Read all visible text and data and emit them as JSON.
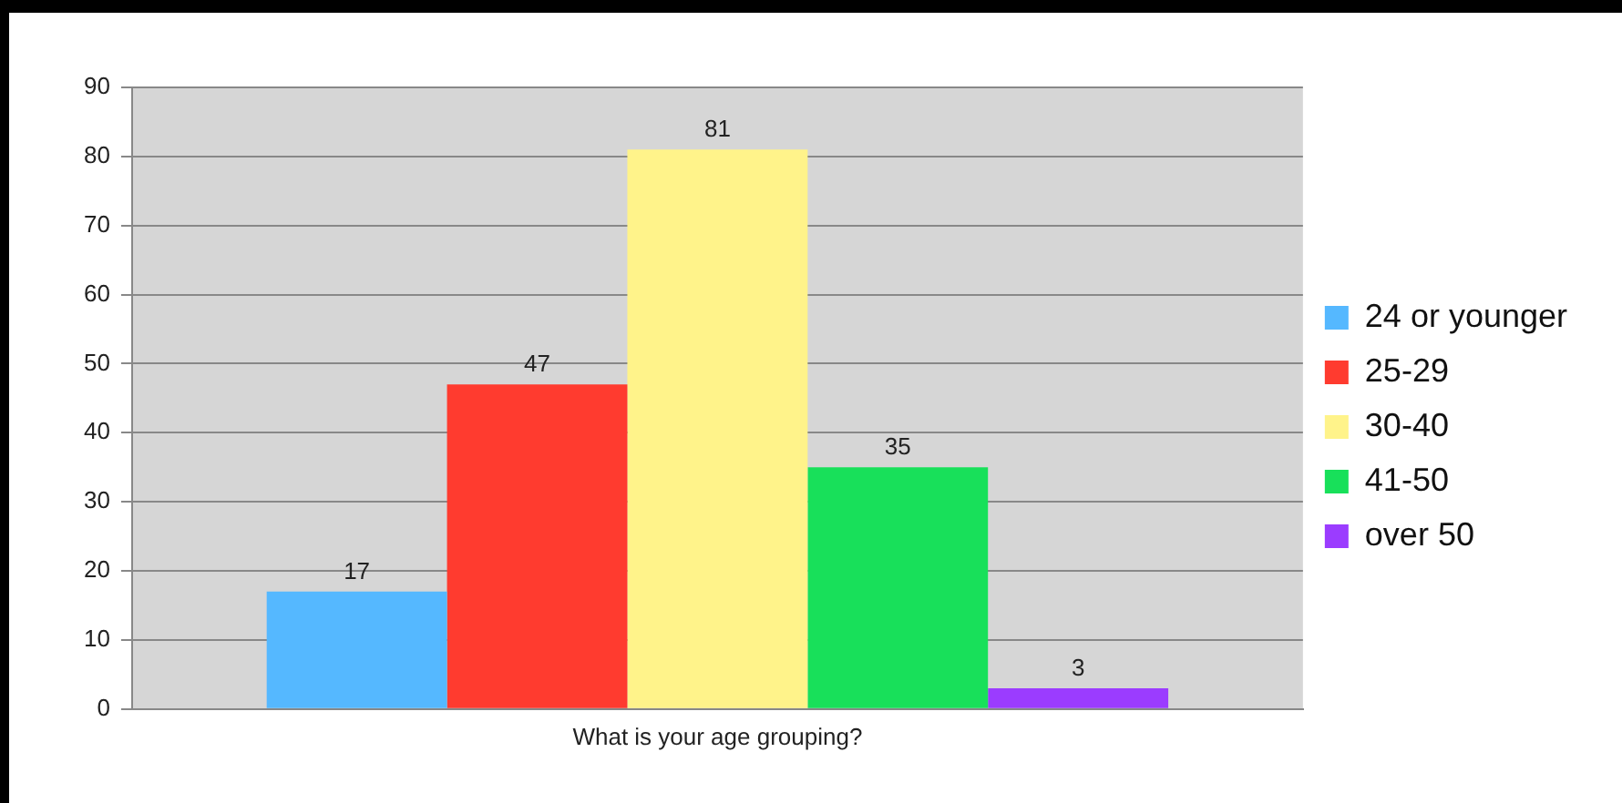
{
  "chart_data": {
    "type": "bar",
    "categories": [
      "What is your age grouping?"
    ],
    "series": [
      {
        "name": "24 or younger",
        "color": "#55b8ff",
        "values": [
          17
        ]
      },
      {
        "name": "25-29",
        "color": "#ff3b2f",
        "values": [
          47
        ]
      },
      {
        "name": "30-40",
        "color": "#fff38a",
        "values": [
          81
        ]
      },
      {
        "name": "41-50",
        "color": "#18e05a",
        "values": [
          35
        ]
      },
      {
        "name": "over 50",
        "color": "#9b3cff",
        "values": [
          3
        ]
      }
    ],
    "ylim": [
      0,
      90
    ],
    "yticks": [
      0,
      10,
      20,
      30,
      40,
      50,
      60,
      70,
      80,
      90
    ],
    "grid": "y",
    "legend": "right",
    "data_labels": true
  }
}
